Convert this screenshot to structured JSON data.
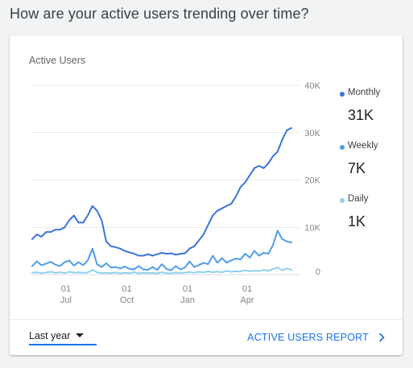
{
  "page": {
    "title": "How are your active users trending over time?"
  },
  "card": {
    "title": "Active Users",
    "range_label": "Last year",
    "report_label": "ACTIVE USERS REPORT"
  },
  "legend": [
    {
      "name": "Monthly",
      "value": "31K",
      "color": "#3b73d8"
    },
    {
      "name": "Weekly",
      "value": "7K",
      "color": "#4f9de8"
    },
    {
      "name": "Daily",
      "value": "1K",
      "color": "#8fd0ee"
    }
  ],
  "chart_data": {
    "type": "line",
    "title": "Active Users",
    "xlabel": "",
    "ylabel": "",
    "ylim": [
      0,
      40000
    ],
    "grid": true,
    "legend_position": "right",
    "y_ticks": [
      {
        "value": 40000,
        "label": "40K"
      },
      {
        "value": 30000,
        "label": "30K"
      },
      {
        "value": 20000,
        "label": "20K"
      },
      {
        "value": 10000,
        "label": "10K"
      },
      {
        "value": 0,
        "label": "0"
      }
    ],
    "x_ticks": [
      {
        "day": 51,
        "day_label": "01",
        "month_label": "Jul"
      },
      {
        "day": 143,
        "day_label": "01",
        "month_label": "Oct"
      },
      {
        "day": 235,
        "day_label": "01",
        "month_label": "Jan"
      },
      {
        "day": 325,
        "day_label": "01",
        "month_label": "Apr"
      }
    ],
    "x": [
      0,
      7,
      14,
      21,
      28,
      35,
      42,
      49,
      56,
      63,
      70,
      77,
      84,
      91,
      98,
      105,
      112,
      119,
      126,
      133,
      140,
      147,
      154,
      161,
      168,
      175,
      182,
      189,
      196,
      203,
      210,
      217,
      224,
      231,
      238,
      245,
      252,
      259,
      266,
      273,
      280,
      287,
      294,
      301,
      308,
      315,
      322,
      329,
      336,
      343,
      350,
      357,
      364,
      371,
      378,
      385,
      392
    ],
    "series": [
      {
        "name": "Monthly",
        "color": "#3b73d8",
        "values": [
          7500,
          8500,
          8000,
          9000,
          9000,
          9500,
          9500,
          10000,
          11500,
          12500,
          11000,
          11000,
          12500,
          14500,
          13500,
          11500,
          7000,
          6000,
          5800,
          5500,
          5000,
          4700,
          4400,
          4000,
          4000,
          4300,
          4000,
          4300,
          4600,
          4400,
          4500,
          4200,
          4400,
          4500,
          5500,
          6000,
          7200,
          8500,
          10500,
          12500,
          13500,
          14000,
          14500,
          15000,
          16500,
          18500,
          19500,
          21000,
          22500,
          23000,
          22500,
          23500,
          25000,
          26000,
          28500,
          30500,
          31000
        ]
      },
      {
        "name": "Weekly",
        "color": "#4f9de8",
        "values": [
          1800,
          2800,
          2000,
          2300,
          2700,
          2100,
          1800,
          2600,
          3000,
          1900,
          2600,
          2000,
          3000,
          5500,
          2200,
          1600,
          2400,
          1500,
          1600,
          1300,
          1700,
          1200,
          1100,
          1800,
          1100,
          1000,
          1600,
          1000,
          2200,
          1200,
          900,
          1800,
          1100,
          1500,
          2800,
          1600,
          2000,
          2500,
          2200,
          4000,
          2500,
          3500,
          2500,
          3000,
          3400,
          3200,
          4400,
          3600,
          5000,
          4000,
          4600,
          4400,
          6200,
          9300,
          7500,
          7000,
          6800
        ]
      },
      {
        "name": "Daily",
        "color": "#8fd0ee",
        "values": [
          400,
          500,
          300,
          450,
          600,
          350,
          500,
          300,
          600,
          400,
          500,
          350,
          450,
          1000,
          500,
          300,
          400,
          300,
          450,
          250,
          400,
          300,
          500,
          250,
          400,
          300,
          350,
          250,
          500,
          300,
          250,
          450,
          300,
          400,
          550,
          400,
          600,
          450,
          700,
          500,
          650,
          500,
          800,
          600,
          700,
          650,
          900,
          700,
          800,
          750,
          1000,
          800,
          1200,
          1500,
          900,
          1300,
          1000
        ]
      }
    ]
  }
}
